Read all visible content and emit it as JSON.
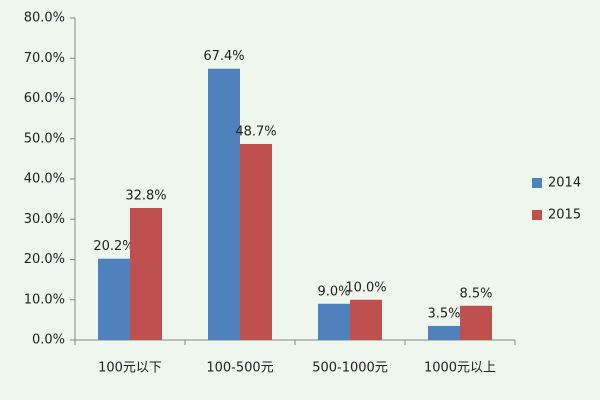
{
  "chart_data": {
    "type": "bar",
    "categories": [
      "100元以下",
      "100-500元",
      "500-1000元",
      "1000元以上"
    ],
    "series": [
      {
        "name": "2014",
        "color": "#4f81bd",
        "values": [
          20.2,
          67.4,
          9.0,
          3.5
        ],
        "value_labels": [
          "20.2%",
          "67.4%",
          "9.0%",
          "3.5%"
        ]
      },
      {
        "name": "2015",
        "color": "#c0504d",
        "values": [
          32.8,
          48.7,
          10.0,
          8.5
        ],
        "value_labels": [
          "32.8%",
          "48.7%",
          "10.0%",
          "8.5%"
        ]
      }
    ],
    "ylim": [
      0,
      80
    ],
    "yticks": [
      {
        "value": 0,
        "label": "0.0%"
      },
      {
        "value": 10,
        "label": "10.0%"
      },
      {
        "value": 20,
        "label": "20.0%"
      },
      {
        "value": 30,
        "label": "30.0%"
      },
      {
        "value": 40,
        "label": "40.0%"
      },
      {
        "value": 50,
        "label": "50.0%"
      },
      {
        "value": 60,
        "label": "60.0%"
      },
      {
        "value": 70,
        "label": "70.0%"
      },
      {
        "value": 80,
        "label": "80.0%"
      }
    ],
    "legend": "right"
  }
}
